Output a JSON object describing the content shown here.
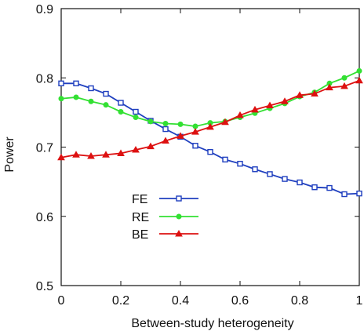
{
  "chart_data": {
    "type": "line",
    "xlabel": "Between-study heterogeneity",
    "ylabel": "Power",
    "xlim": [
      0,
      1
    ],
    "ylim": [
      0.5,
      0.9
    ],
    "x_ticks": [
      0,
      0.2,
      0.4,
      0.6,
      0.8,
      1
    ],
    "x_tick_labels": [
      "0",
      "0.2",
      "0.4",
      "0.6",
      "0.8",
      "1"
    ],
    "y_ticks": [
      0.5,
      0.6,
      0.7,
      0.8,
      0.9
    ],
    "y_tick_labels": [
      "0.5",
      "0.6",
      "0.7",
      "0.8",
      "0.9"
    ],
    "grid": false,
    "legend_position": "lower-left",
    "x": [
      0,
      0.05,
      0.1,
      0.15,
      0.2,
      0.25,
      0.3,
      0.35,
      0.4,
      0.45,
      0.5,
      0.55,
      0.6,
      0.65,
      0.7,
      0.75,
      0.8,
      0.85,
      0.9,
      0.95,
      1
    ],
    "series": [
      {
        "name": "FE",
        "color": "#1f3fbf",
        "marker": "square",
        "values": [
          0.792,
          0.792,
          0.785,
          0.777,
          0.764,
          0.751,
          0.738,
          0.726,
          0.715,
          0.702,
          0.693,
          0.682,
          0.676,
          0.668,
          0.661,
          0.654,
          0.649,
          0.642,
          0.641,
          0.632,
          0.633
        ]
      },
      {
        "name": "RE",
        "color": "#33e033",
        "marker": "circle",
        "values": [
          0.77,
          0.772,
          0.766,
          0.761,
          0.751,
          0.743,
          0.737,
          0.734,
          0.733,
          0.73,
          0.735,
          0.737,
          0.743,
          0.749,
          0.756,
          0.763,
          0.773,
          0.779,
          0.792,
          0.8,
          0.81
        ]
      },
      {
        "name": "BE",
        "color": "#dd1111",
        "marker": "triangle",
        "values": [
          0.685,
          0.689,
          0.687,
          0.689,
          0.691,
          0.696,
          0.701,
          0.709,
          0.716,
          0.722,
          0.729,
          0.736,
          0.746,
          0.754,
          0.76,
          0.766,
          0.775,
          0.777,
          0.786,
          0.788,
          0.796
        ]
      }
    ]
  }
}
